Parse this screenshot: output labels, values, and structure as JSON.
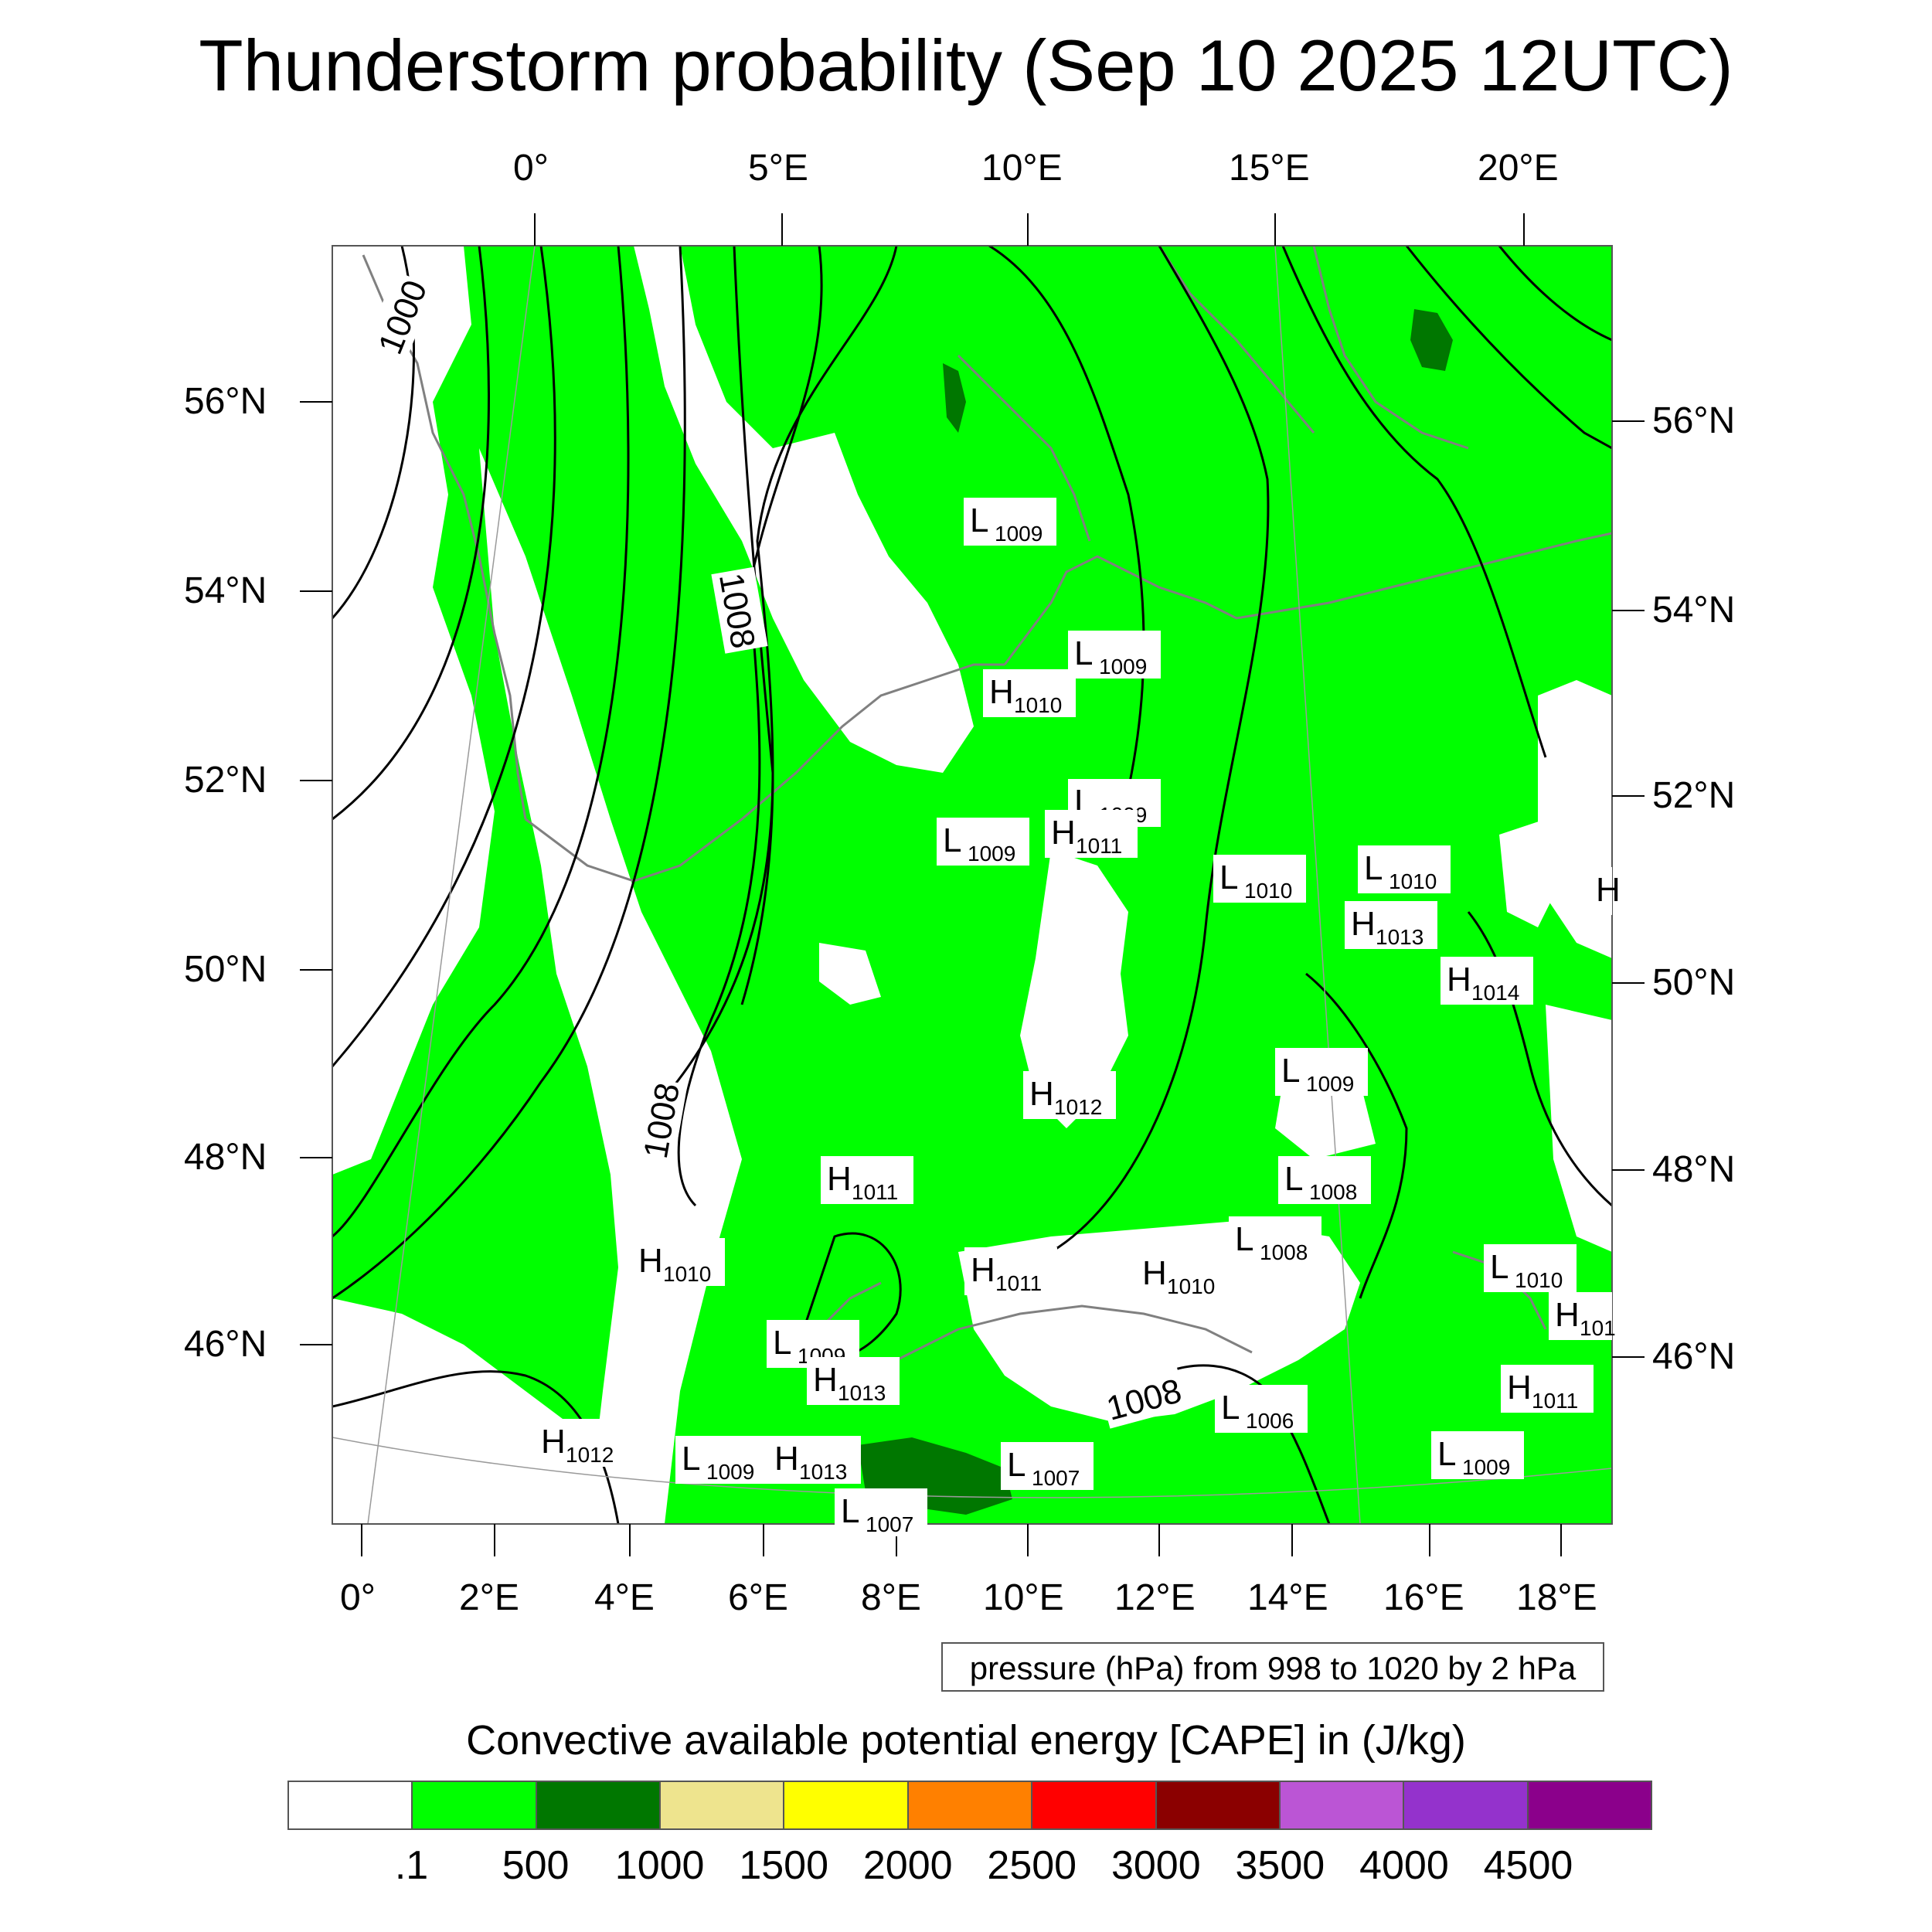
{
  "title": "Thunderstorm probability (Sep 10 2025 12UTC)",
  "top_lon_labels": [
    "0°",
    "5°E",
    "10°E",
    "15°E",
    "20°E"
  ],
  "bottom_lon_labels": [
    "0°",
    "2°E",
    "4°E",
    "6°E",
    "8°E",
    "10°E",
    "12°E",
    "14°E",
    "16°E",
    "18°E"
  ],
  "left_lat_labels": [
    "56°N",
    "54°N",
    "52°N",
    "50°N",
    "48°N",
    "46°N"
  ],
  "right_lat_labels": [
    "56°N",
    "54°N",
    "52°N",
    "50°N",
    "48°N",
    "46°N"
  ],
  "contour_labels": [
    "1000",
    "1008",
    "1008",
    "1008"
  ],
  "pressure_centers": [
    {
      "type": "L",
      "value": "1009"
    },
    {
      "type": "L",
      "value": "1009"
    },
    {
      "type": "H",
      "value": "1010"
    },
    {
      "type": "L",
      "value": "1009"
    },
    {
      "type": "L",
      "value": "1009"
    },
    {
      "type": "H",
      "value": "1011"
    },
    {
      "type": "L",
      "value": "1010"
    },
    {
      "type": "L",
      "value": "1010"
    },
    {
      "type": "H",
      "value": "1013"
    },
    {
      "type": "H",
      "value": ""
    },
    {
      "type": "H",
      "value": "1014"
    },
    {
      "type": "L",
      "value": "1009"
    },
    {
      "type": "H",
      "value": "1012"
    },
    {
      "type": "H",
      "value": "1011"
    },
    {
      "type": "L",
      "value": "1008"
    },
    {
      "type": "L",
      "value": "1008"
    },
    {
      "type": "H",
      "value": "1010"
    },
    {
      "type": "H",
      "value": "1011"
    },
    {
      "type": "H",
      "value": "1010"
    },
    {
      "type": "L",
      "value": "1010"
    },
    {
      "type": "H",
      "value": "101"
    },
    {
      "type": "L",
      "value": "1009"
    },
    {
      "type": "H",
      "value": "1013"
    },
    {
      "type": "H",
      "value": "1011"
    },
    {
      "type": "L",
      "value": "1006"
    },
    {
      "type": "H",
      "value": "1012"
    },
    {
      "type": "L",
      "value": "1009"
    },
    {
      "type": "H",
      "value": "1013"
    },
    {
      "type": "L",
      "value": "1007"
    },
    {
      "type": "L",
      "value": "1009"
    },
    {
      "type": "L",
      "value": "1007"
    }
  ],
  "subtitle": "pressure (hPa) from 998 to 1020 by 2 hPa",
  "colorbar": {
    "title": "Convective available potential energy [CAPE] in (J/kg)",
    "colors": [
      "#ffffff",
      "#00ff00",
      "#007700",
      "#eee48e",
      "#ffff00",
      "#ff8000",
      "#ff0000",
      "#8b0000",
      "#bb55d5",
      "#9432cc",
      "#8b008b"
    ],
    "labels": [
      ".1",
      "500",
      "1000",
      "1500",
      "2000",
      "2500",
      "3000",
      "3500",
      "4000",
      "4500"
    ]
  },
  "colors": {
    "cape_green": "#00ff00",
    "cape_dark_green": "#007700",
    "coastline": "#808080",
    "isobar": "#000000"
  }
}
